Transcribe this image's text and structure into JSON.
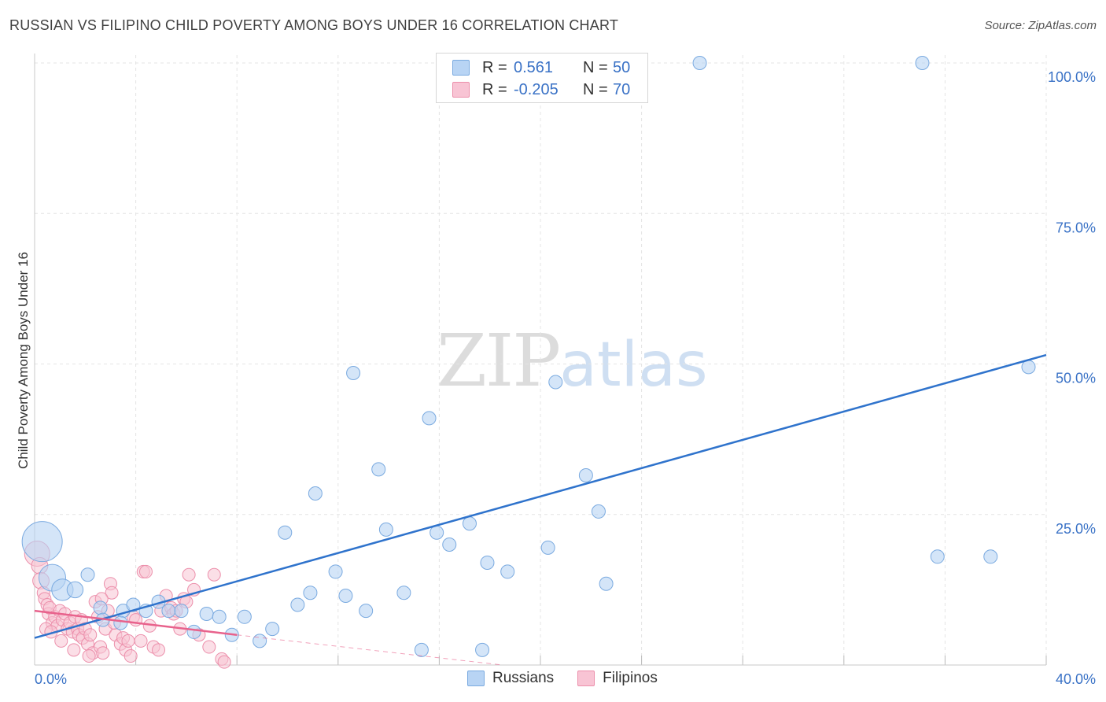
{
  "title": "RUSSIAN VS FILIPINO CHILD POVERTY AMONG BOYS UNDER 16 CORRELATION CHART",
  "source": "Source: ZipAtlas.com",
  "watermark": {
    "zip": "ZIP",
    "atlas": "atlas"
  },
  "legend_top": [
    {
      "r_label": "R =",
      "r_value": "0.561",
      "n_label": "N =",
      "n_value": "50"
    },
    {
      "r_label": "R =",
      "r_value": "-0.205",
      "n_label": "N =",
      "n_value": "70"
    }
  ],
  "legend_bottom": [
    "Russians",
    "Filipinos"
  ],
  "colors": {
    "russian_fill": "#b8d4f4",
    "russian_stroke": "#7aaae0",
    "russian_line": "#2f73cc",
    "filipino_fill": "#f8c4d4",
    "filipino_stroke": "#ec8fab",
    "filipino_line": "#e8628c",
    "grid": "#e4e4e4",
    "tick_text": "#3a72c6"
  },
  "chart_data": {
    "type": "scatter",
    "title": "RUSSIAN VS FILIPINO CHILD POVERTY AMONG BOYS UNDER 16 CORRELATION CHART",
    "xlabel": "",
    "ylabel": "Child Poverty Among Boys Under 16",
    "xlim": [
      0,
      40
    ],
    "ylim": [
      0,
      100
    ],
    "x_tick_labels": [
      "0.0%",
      "40.0%"
    ],
    "y_ticks": [
      25,
      50,
      75,
      100
    ],
    "y_tick_labels": [
      "25.0%",
      "50.0%",
      "75.0%",
      "100.0%"
    ],
    "series": [
      {
        "name": "Russians",
        "r": 0.561,
        "n": 50,
        "trend": {
          "x": [
            0,
            40
          ],
          "y": [
            4.5,
            51.5
          ]
        },
        "points": [
          {
            "x": 0.3,
            "y": 20.5,
            "s": 3
          },
          {
            "x": 0.7,
            "y": 14.5,
            "s": 2
          },
          {
            "x": 1.1,
            "y": 12.5,
            "s": 1.6
          },
          {
            "x": 1.6,
            "y": 12.5,
            "s": 1.2
          },
          {
            "x": 2.1,
            "y": 15.0,
            "s": 1
          },
          {
            "x": 2.6,
            "y": 9.5,
            "s": 1
          },
          {
            "x": 3.5,
            "y": 9.0,
            "s": 1
          },
          {
            "x": 3.9,
            "y": 10.0,
            "s": 1
          },
          {
            "x": 4.4,
            "y": 9.0,
            "s": 1
          },
          {
            "x": 4.9,
            "y": 10.5,
            "s": 1
          },
          {
            "x": 5.3,
            "y": 9.0,
            "s": 1
          },
          {
            "x": 5.8,
            "y": 9.0,
            "s": 1
          },
          {
            "x": 6.3,
            "y": 5.5,
            "s": 1
          },
          {
            "x": 6.8,
            "y": 8.5,
            "s": 1
          },
          {
            "x": 7.3,
            "y": 8.0,
            "s": 1
          },
          {
            "x": 7.8,
            "y": 5.0,
            "s": 1
          },
          {
            "x": 8.3,
            "y": 8.0,
            "s": 1
          },
          {
            "x": 8.9,
            "y": 4.0,
            "s": 1
          },
          {
            "x": 9.4,
            "y": 6.0,
            "s": 1
          },
          {
            "x": 9.9,
            "y": 22.0,
            "s": 1
          },
          {
            "x": 10.4,
            "y": 10.0,
            "s": 1
          },
          {
            "x": 10.9,
            "y": 12.0,
            "s": 1
          },
          {
            "x": 11.1,
            "y": 28.5,
            "s": 1
          },
          {
            "x": 11.9,
            "y": 15.5,
            "s": 1
          },
          {
            "x": 12.3,
            "y": 11.5,
            "s": 1
          },
          {
            "x": 12.6,
            "y": 48.5,
            "s": 1
          },
          {
            "x": 13.1,
            "y": 9.0,
            "s": 1
          },
          {
            "x": 13.6,
            "y": 32.5,
            "s": 1
          },
          {
            "x": 13.9,
            "y": 22.5,
            "s": 1
          },
          {
            "x": 14.6,
            "y": 12.0,
            "s": 1
          },
          {
            "x": 15.3,
            "y": 2.5,
            "s": 1
          },
          {
            "x": 15.6,
            "y": 41.0,
            "s": 1
          },
          {
            "x": 15.9,
            "y": 22.0,
            "s": 1
          },
          {
            "x": 16.4,
            "y": 20.0,
            "s": 1
          },
          {
            "x": 17.2,
            "y": 23.5,
            "s": 1
          },
          {
            "x": 17.7,
            "y": 2.5,
            "s": 1
          },
          {
            "x": 17.9,
            "y": 17.0,
            "s": 1
          },
          {
            "x": 18.7,
            "y": 15.5,
            "s": 1
          },
          {
            "x": 20.3,
            "y": 19.5,
            "s": 1
          },
          {
            "x": 20.6,
            "y": 47.0,
            "s": 1
          },
          {
            "x": 21.8,
            "y": 31.5,
            "s": 1
          },
          {
            "x": 22.3,
            "y": 25.5,
            "s": 1
          },
          {
            "x": 22.6,
            "y": 13.5,
            "s": 1
          },
          {
            "x": 26.3,
            "y": 100.0,
            "s": 1
          },
          {
            "x": 35.1,
            "y": 100.0,
            "s": 1
          },
          {
            "x": 35.7,
            "y": 18.0,
            "s": 1
          },
          {
            "x": 37.8,
            "y": 18.0,
            "s": 1
          },
          {
            "x": 39.3,
            "y": 49.5,
            "s": 1
          },
          {
            "x": 2.7,
            "y": 7.5,
            "s": 1
          },
          {
            "x": 3.4,
            "y": 7.0,
            "s": 1
          }
        ]
      },
      {
        "name": "Filipinos",
        "r": -0.205,
        "n": 70,
        "trend": {
          "x": [
            0,
            8
          ],
          "y": [
            9.0,
            5.0
          ]
        },
        "trend_dashed": {
          "x": [
            8,
            18.5
          ],
          "y": [
            5.0,
            0.0
          ]
        },
        "points": [
          {
            "x": 0.1,
            "y": 18.5,
            "s": 2
          },
          {
            "x": 0.2,
            "y": 16.5,
            "s": 1.3
          },
          {
            "x": 0.25,
            "y": 14.0,
            "s": 1.3
          },
          {
            "x": 0.35,
            "y": 12.0,
            "s": 1
          },
          {
            "x": 0.4,
            "y": 11.0,
            "s": 1
          },
          {
            "x": 0.5,
            "y": 10.0,
            "s": 1
          },
          {
            "x": 0.55,
            "y": 8.5,
            "s": 1
          },
          {
            "x": 0.6,
            "y": 9.5,
            "s": 1
          },
          {
            "x": 0.7,
            "y": 7.0,
            "s": 1
          },
          {
            "x": 0.8,
            "y": 8.0,
            "s": 1
          },
          {
            "x": 0.9,
            "y": 6.5,
            "s": 1
          },
          {
            "x": 1.0,
            "y": 9.0,
            "s": 1
          },
          {
            "x": 1.1,
            "y": 7.5,
            "s": 1
          },
          {
            "x": 1.2,
            "y": 8.5,
            "s": 1
          },
          {
            "x": 1.3,
            "y": 6.0,
            "s": 1
          },
          {
            "x": 1.4,
            "y": 7.0,
            "s": 1
          },
          {
            "x": 1.5,
            "y": 5.5,
            "s": 1
          },
          {
            "x": 1.6,
            "y": 8.0,
            "s": 1
          },
          {
            "x": 1.7,
            "y": 6.0,
            "s": 1
          },
          {
            "x": 1.75,
            "y": 5.0,
            "s": 1
          },
          {
            "x": 1.85,
            "y": 7.5,
            "s": 1
          },
          {
            "x": 1.9,
            "y": 4.5,
            "s": 1
          },
          {
            "x": 2.0,
            "y": 6.0,
            "s": 1
          },
          {
            "x": 2.1,
            "y": 3.5,
            "s": 1
          },
          {
            "x": 2.2,
            "y": 5.0,
            "s": 1
          },
          {
            "x": 2.3,
            "y": 2.0,
            "s": 1
          },
          {
            "x": 2.4,
            "y": 10.5,
            "s": 1
          },
          {
            "x": 2.5,
            "y": 8.0,
            "s": 1
          },
          {
            "x": 2.6,
            "y": 3.0,
            "s": 1
          },
          {
            "x": 2.7,
            "y": 2.0,
            "s": 1
          },
          {
            "x": 2.8,
            "y": 6.0,
            "s": 1
          },
          {
            "x": 2.9,
            "y": 9.0,
            "s": 1
          },
          {
            "x": 3.0,
            "y": 13.5,
            "s": 1
          },
          {
            "x": 3.05,
            "y": 12.0,
            "s": 1
          },
          {
            "x": 3.2,
            "y": 5.0,
            "s": 1
          },
          {
            "x": 3.4,
            "y": 3.5,
            "s": 1
          },
          {
            "x": 3.5,
            "y": 4.5,
            "s": 1
          },
          {
            "x": 3.6,
            "y": 2.5,
            "s": 1
          },
          {
            "x": 3.7,
            "y": 4.0,
            "s": 1
          },
          {
            "x": 3.8,
            "y": 1.5,
            "s": 1
          },
          {
            "x": 3.9,
            "y": 8.0,
            "s": 1
          },
          {
            "x": 4.0,
            "y": 7.5,
            "s": 1
          },
          {
            "x": 4.3,
            "y": 15.5,
            "s": 1
          },
          {
            "x": 4.4,
            "y": 15.5,
            "s": 1
          },
          {
            "x": 4.7,
            "y": 3.0,
            "s": 1
          },
          {
            "x": 4.9,
            "y": 2.5,
            "s": 1
          },
          {
            "x": 5.0,
            "y": 9.0,
            "s": 1
          },
          {
            "x": 5.2,
            "y": 11.5,
            "s": 1
          },
          {
            "x": 5.4,
            "y": 9.5,
            "s": 1
          },
          {
            "x": 5.5,
            "y": 8.5,
            "s": 1
          },
          {
            "x": 5.6,
            "y": 9.0,
            "s": 1
          },
          {
            "x": 5.9,
            "y": 11.0,
            "s": 1
          },
          {
            "x": 6.0,
            "y": 10.5,
            "s": 1
          },
          {
            "x": 6.1,
            "y": 15.0,
            "s": 1
          },
          {
            "x": 6.3,
            "y": 12.5,
            "s": 1
          },
          {
            "x": 6.5,
            "y": 5.0,
            "s": 1
          },
          {
            "x": 6.9,
            "y": 3.0,
            "s": 1
          },
          {
            "x": 7.1,
            "y": 15.0,
            "s": 1
          },
          {
            "x": 7.4,
            "y": 1.0,
            "s": 1
          },
          {
            "x": 7.5,
            "y": 0.5,
            "s": 1
          },
          {
            "x": 0.45,
            "y": 6.0,
            "s": 1
          },
          {
            "x": 0.65,
            "y": 5.5,
            "s": 1
          },
          {
            "x": 1.05,
            "y": 4.0,
            "s": 1
          },
          {
            "x": 1.55,
            "y": 2.5,
            "s": 1
          },
          {
            "x": 2.15,
            "y": 1.5,
            "s": 1
          },
          {
            "x": 2.65,
            "y": 11.0,
            "s": 1
          },
          {
            "x": 3.15,
            "y": 7.0,
            "s": 1
          },
          {
            "x": 4.2,
            "y": 4.0,
            "s": 1
          },
          {
            "x": 4.55,
            "y": 6.5,
            "s": 1
          },
          {
            "x": 5.75,
            "y": 6.0,
            "s": 1
          }
        ]
      }
    ]
  }
}
